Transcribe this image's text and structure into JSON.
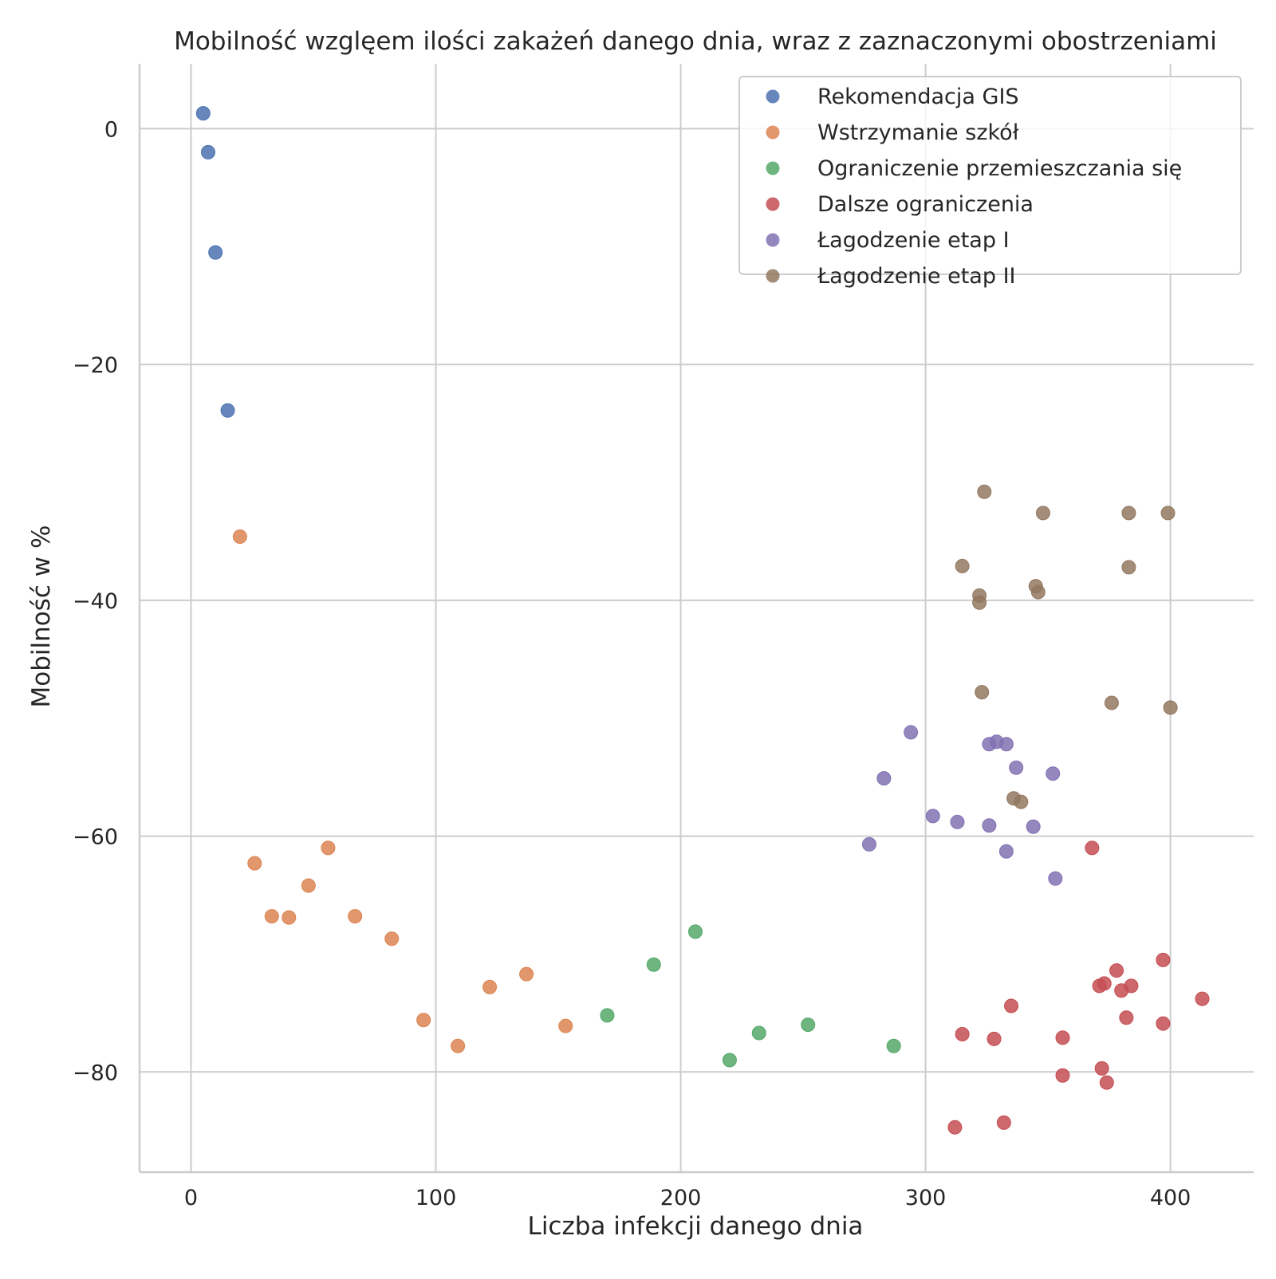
{
  "chart_data": {
    "type": "scatter",
    "title": "Mobilność wzglęem ilości zakażeń danego dnia, wraz z zaznaczonymi obostrzeniami",
    "xlabel": "Liczba infekcji danego dnia",
    "ylabel": "Mobilność w %",
    "xlim": [
      -21,
      434
    ],
    "ylim": [
      -88.5,
      5.5
    ],
    "xticks": [
      0,
      100,
      200,
      300,
      400
    ],
    "yticks": [
      0,
      -20,
      -40,
      -60,
      -80
    ],
    "xtick_labels": [
      "0",
      "100",
      "200",
      "300",
      "400"
    ],
    "ytick_labels": [
      "0",
      "−20",
      "−40",
      "−60",
      "−80"
    ],
    "grid": true,
    "legend_position": "top-right",
    "series": [
      {
        "name": "Rekomendacja GIS",
        "color": "#4c72b0",
        "points": [
          [
            5,
            1.3
          ],
          [
            7,
            -2
          ],
          [
            10,
            -10.5
          ],
          [
            15,
            -23.9
          ]
        ]
      },
      {
        "name": "Wstrzymanie szkół",
        "color": "#dd8452",
        "points": [
          [
            20,
            -34.6
          ],
          [
            26,
            -62.3
          ],
          [
            33,
            -66.8
          ],
          [
            40,
            -66.9
          ],
          [
            48,
            -64.2
          ],
          [
            56,
            -61
          ],
          [
            67,
            -66.8
          ],
          [
            82,
            -68.7
          ],
          [
            95,
            -75.6
          ],
          [
            109,
            -77.8
          ],
          [
            122,
            -72.8
          ],
          [
            137,
            -71.7
          ],
          [
            153,
            -76.1
          ]
        ]
      },
      {
        "name": "Ograniczenie przemieszczania się",
        "color": "#55a868",
        "points": [
          [
            170,
            -75.2
          ],
          [
            189,
            -70.9
          ],
          [
            206,
            -68.1
          ],
          [
            220,
            -79
          ],
          [
            232,
            -76.7
          ],
          [
            252,
            -76
          ],
          [
            287,
            -77.8
          ]
        ]
      },
      {
        "name": "Dalsze ograniczenia",
        "color": "#c44e52",
        "points": [
          [
            312,
            -84.7
          ],
          [
            315,
            -76.8
          ],
          [
            328,
            -77.2
          ],
          [
            332,
            -84.3
          ],
          [
            335,
            -74.4
          ],
          [
            356,
            -77.1
          ],
          [
            356,
            -80.3
          ],
          [
            368,
            -61
          ],
          [
            371,
            -72.7
          ],
          [
            372,
            -79.7
          ],
          [
            373,
            -72.5
          ],
          [
            374,
            -80.9
          ],
          [
            378,
            -71.4
          ],
          [
            380,
            -73.1
          ],
          [
            382,
            -75.4
          ],
          [
            384,
            -72.7
          ],
          [
            397,
            -70.5
          ],
          [
            397,
            -75.9
          ],
          [
            413,
            -73.8
          ]
        ]
      },
      {
        "name": "Łagodzenie etap I",
        "color": "#8172b3",
        "points": [
          [
            277,
            -60.7
          ],
          [
            283,
            -55.1
          ],
          [
            294,
            -51.2
          ],
          [
            303,
            -58.3
          ],
          [
            313,
            -58.8
          ],
          [
            326,
            -52.2
          ],
          [
            326,
            -59.1
          ],
          [
            329,
            -52
          ],
          [
            333,
            -52.2
          ],
          [
            333,
            -61.3
          ],
          [
            337,
            -54.2
          ],
          [
            344,
            -59.2
          ],
          [
            352,
            -54.7
          ],
          [
            353,
            -63.6
          ]
        ]
      },
      {
        "name": "Łagodzenie etap II",
        "color": "#937860",
        "points": [
          [
            315,
            -37.1
          ],
          [
            322,
            -39.6
          ],
          [
            322,
            -40.2
          ],
          [
            323,
            -47.8
          ],
          [
            324,
            -30.8
          ],
          [
            336,
            -56.8
          ],
          [
            339,
            -57.1
          ],
          [
            345,
            -38.8
          ],
          [
            346,
            -39.3
          ],
          [
            348,
            -32.6
          ],
          [
            376,
            -48.7
          ],
          [
            383,
            -32.6
          ],
          [
            383,
            -37.2
          ],
          [
            399,
            -32.6
          ],
          [
            400,
            -49.1
          ]
        ]
      }
    ]
  }
}
